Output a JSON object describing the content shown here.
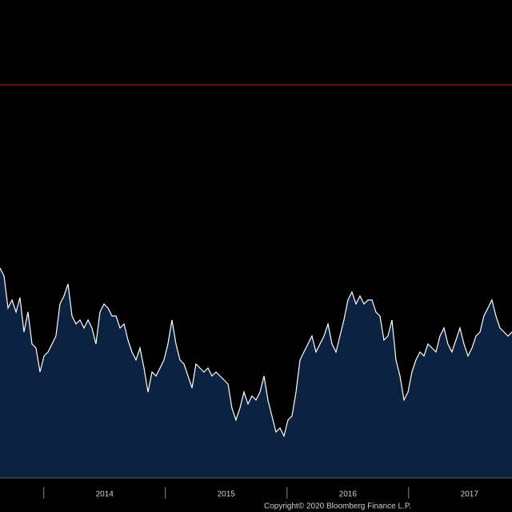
{
  "chart_data": {
    "type": "area",
    "x": [
      2013.64,
      2013.673,
      2013.706,
      2013.739,
      2013.772,
      2013.804,
      2013.837,
      2013.87,
      2013.903,
      2013.936,
      2013.969,
      2014.002,
      2014.035,
      2014.068,
      2014.1,
      2014.133,
      2014.166,
      2014.199,
      2014.232,
      2014.265,
      2014.298,
      2014.331,
      2014.364,
      2014.396,
      2014.429,
      2014.462,
      2014.495,
      2014.528,
      2014.561,
      2014.594,
      2014.627,
      2014.66,
      2014.692,
      2014.725,
      2014.758,
      2014.791,
      2014.824,
      2014.857,
      2014.89,
      2014.923,
      2014.956,
      2014.988,
      2015.021,
      2015.054,
      2015.087,
      2015.12,
      2015.153,
      2015.186,
      2015.219,
      2015.251,
      2015.284,
      2015.317,
      2015.35,
      2015.383,
      2015.416,
      2015.449,
      2015.482,
      2015.515,
      2015.547,
      2015.58,
      2015.613,
      2015.646,
      2015.679,
      2015.712,
      2015.745,
      2015.778,
      2015.811,
      2015.843,
      2015.876,
      2015.909,
      2015.942,
      2015.975,
      2016.008,
      2016.041,
      2016.074,
      2016.107,
      2016.139,
      2016.172,
      2016.205,
      2016.238,
      2016.271,
      2016.304,
      2016.337,
      2016.37,
      2016.403,
      2016.435,
      2016.468,
      2016.501,
      2016.534,
      2016.567,
      2016.6,
      2016.633,
      2016.666,
      2016.699,
      2016.731,
      2016.764,
      2016.797,
      2016.83,
      2016.863,
      2016.896,
      2016.929,
      2016.962,
      2016.995,
      2017.027,
      2017.06,
      2017.093,
      2017.126,
      2017.159,
      2017.192,
      2017.225,
      2017.258,
      2017.291,
      2017.323,
      2017.356,
      2017.389,
      2017.422,
      2017.455,
      2017.488,
      2017.521,
      2017.554,
      2017.587,
      2017.619,
      2017.652,
      2017.685,
      2017.718,
      2017.751,
      2017.784,
      2017.817,
      2017.85
    ],
    "series": [
      {
        "color": "#ffffff",
        "fill": "#0d2240",
        "values": [
          262,
          252,
          212,
          222,
          207,
          225,
          182,
          207,
          167,
          162,
          132,
          152,
          157,
          167,
          177,
          217,
          227,
          242,
          202,
          192,
          197,
          187,
          197,
          187,
          167,
          207,
          217,
          212,
          202,
          202,
          187,
          192,
          172,
          157,
          147,
          162,
          137,
          107,
          132,
          127,
          137,
          147,
          167,
          197,
          167,
          147,
          142,
          127,
          112,
          142,
          137,
          132,
          137,
          127,
          132,
          127,
          122,
          117,
          87,
          72,
          87,
          107,
          92,
          102,
          97,
          107,
          127,
          97,
          77,
          57,
          62,
          52,
          72,
          77,
          107,
          147,
          157,
          167,
          177,
          157,
          167,
          177,
          192,
          167,
          157,
          177,
          197,
          222,
          232,
          217,
          227,
          217,
          222,
          222,
          207,
          202,
          172,
          177,
          197,
          147,
          127,
          97,
          107,
          132,
          147,
          157,
          152,
          167,
          162,
          157,
          177,
          187,
          167,
          157,
          172,
          187,
          167,
          152,
          162,
          177,
          182,
          202,
          212,
          222,
          202,
          187,
          182,
          177,
          182
        ]
      }
    ],
    "reference_line": {
      "value": 491,
      "color": "#c8281e"
    },
    "xlim": [
      2013.64,
      2017.85
    ],
    "ylim": [
      0,
      597
    ],
    "separators": [
      2014,
      2015,
      2016,
      2017
    ],
    "xticks": [
      {
        "value": 2014.5,
        "label": "2014"
      },
      {
        "value": 2015.5,
        "label": "2015"
      },
      {
        "value": 2016.5,
        "label": "2016"
      },
      {
        "value": 2017.5,
        "label": "2017"
      }
    ],
    "footer": "Copyright© 2020 Bloomberg Finance L.P."
  }
}
